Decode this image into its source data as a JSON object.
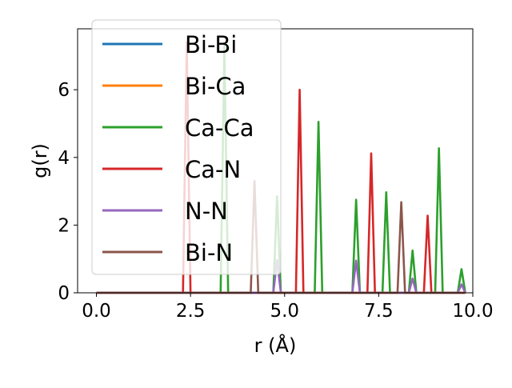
{
  "chart_data": {
    "type": "line",
    "title": "",
    "xlabel": "r (Å)",
    "ylabel": "g(r)",
    "xlim": [
      -0.5,
      10.0
    ],
    "ylim": [
      0,
      7.8
    ],
    "xticks": [
      {
        "value": 0.0,
        "label": "0.0"
      },
      {
        "value": 2.5,
        "label": "2.5"
      },
      {
        "value": 5.0,
        "label": "5.0"
      },
      {
        "value": 7.5,
        "label": "7.5"
      },
      {
        "value": 10.0,
        "label": "10.0"
      }
    ],
    "yticks": [
      {
        "value": 0,
        "label": "0"
      },
      {
        "value": 2,
        "label": "2"
      },
      {
        "value": 4,
        "label": "4"
      },
      {
        "value": 6,
        "label": "6"
      }
    ],
    "grid": false,
    "legend_position": "top-left",
    "x_range": [
      0.0,
      9.8
    ],
    "peak_halfwidth": 0.1,
    "series": [
      {
        "name": "Bi-Bi",
        "color": "#1f77b4",
        "peaks": []
      },
      {
        "name": "Bi-Ca",
        "color": "#ff7f0e",
        "peaks": []
      },
      {
        "name": "Ca-Ca",
        "color": "#2ca02c",
        "peaks": [
          {
            "x": 3.4,
            "y": 7.3
          },
          {
            "x": 4.8,
            "y": 2.85
          },
          {
            "x": 5.9,
            "y": 5.05
          },
          {
            "x": 6.9,
            "y": 2.75
          },
          {
            "x": 7.7,
            "y": 2.97
          },
          {
            "x": 8.4,
            "y": 1.25
          },
          {
            "x": 9.1,
            "y": 4.27
          },
          {
            "x": 9.7,
            "y": 0.7
          }
        ]
      },
      {
        "name": "Ca-N",
        "color": "#d62728",
        "peaks": [
          {
            "x": 2.4,
            "y": 7.4
          },
          {
            "x": 5.4,
            "y": 6.0
          },
          {
            "x": 7.3,
            "y": 4.12
          },
          {
            "x": 8.8,
            "y": 2.28
          }
        ]
      },
      {
        "name": "N-N",
        "color": "#9467bd",
        "peaks": [
          {
            "x": 4.8,
            "y": 0.97
          },
          {
            "x": 6.9,
            "y": 0.95
          },
          {
            "x": 8.4,
            "y": 0.42
          },
          {
            "x": 9.7,
            "y": 0.25
          }
        ]
      },
      {
        "name": "Bi-N",
        "color": "#8c564b",
        "peaks": [
          {
            "x": 4.2,
            "y": 3.3
          },
          {
            "x": 8.1,
            "y": 2.68
          }
        ]
      }
    ]
  }
}
